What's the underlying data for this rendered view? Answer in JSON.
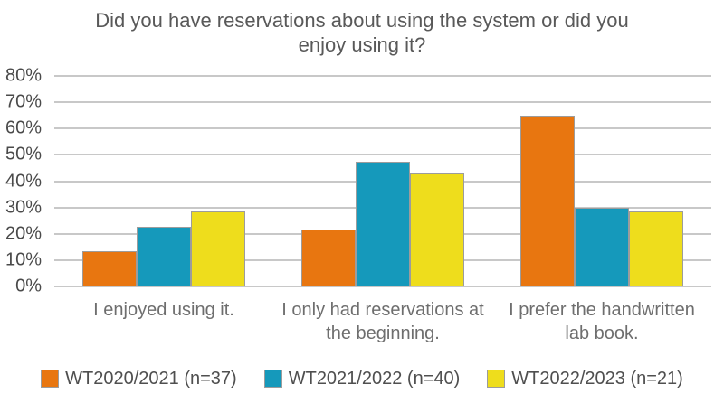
{
  "title": "Did you have reservations about using the system or did you enjoy using it?",
  "title_lines": [
    "Did you have reservations about using the system or did you",
    "enjoy using it?"
  ],
  "chart_data": {
    "type": "bar",
    "title": "Did you have reservations about using the system or did you enjoy using it?",
    "categories": [
      "I enjoyed using it.",
      "I only had reservations at the beginning.",
      "I prefer the handwritten lab book."
    ],
    "series": [
      {
        "name": "WT2020/2021 (n=37)",
        "color": "#e87610",
        "values": [
          13.5,
          21.6,
          64.9
        ]
      },
      {
        "name": "WT2021/2022 (n=40)",
        "color": "#1599bb",
        "values": [
          22.5,
          47.5,
          30.0
        ]
      },
      {
        "name": "WT2022/2023 (n=21)",
        "color": "#eedd1c",
        "values": [
          28.6,
          42.9,
          28.6
        ]
      }
    ],
    "xlabel": "",
    "ylabel": "",
    "ylim": [
      0,
      80
    ],
    "y_tick_step": 10,
    "y_tick_labels": [
      "0%",
      "10%",
      "20%",
      "30%",
      "40%",
      "50%",
      "60%",
      "70%",
      "80%"
    ],
    "unit": "%",
    "grid": true,
    "legend_position": "bottom"
  },
  "style": {
    "background": "#ffffff",
    "grid_color": "#c8c8c8",
    "bar_border_color": "#9c9c9c",
    "title_color": "#595959",
    "axis_text_color": "#4a4a4a",
    "category_text_color": "#6e6e6e",
    "legend_text_color": "#4f4f4f"
  }
}
